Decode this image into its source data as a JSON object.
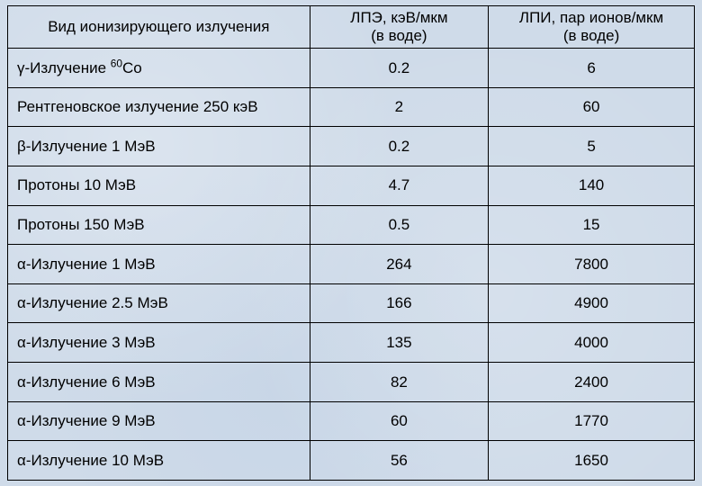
{
  "table": {
    "background_color": "#cfdbe9",
    "border_color": "#000000",
    "text_color": "#000000",
    "font_family": "Arial",
    "header_fontsize": 17,
    "body_fontsize": 17,
    "column_widths_pct": [
      44,
      26,
      30
    ],
    "columns": [
      "Вид ионизирующего излучения",
      "ЛПЭ, кэВ/мкм\n(в воде)",
      "ЛПИ, пар ионов/мкм\n(в воде)"
    ],
    "columns_h": [
      "Вид ионизирующего излучения",
      "ЛПЭ, кэВ/мкм<br>(в воде)",
      "ЛПИ, пар ионов/мкм<br>(в воде)"
    ],
    "rows": [
      {
        "label": "γ-Излучение 60Co",
        "label_h": "γ-Излучение <sup>60</sup>Co",
        "lpe": "0.2",
        "lpi": "6"
      },
      {
        "label": "Рентгеновское излучение 250 кэВ",
        "label_h": "Рентгеновское излучение 250 кэВ",
        "lpe": "2",
        "lpi": "60"
      },
      {
        "label": "β-Излучение 1 МэВ",
        "label_h": "β-Излучение 1 МэВ",
        "lpe": "0.2",
        "lpi": "5"
      },
      {
        "label": "Протоны 10 МэВ",
        "label_h": "Протоны 10 МэВ",
        "lpe": "4.7",
        "lpi": "140"
      },
      {
        "label": "Протоны 150 МэВ",
        "label_h": "Протоны 150 МэВ",
        "lpe": "0.5",
        "lpi": "15"
      },
      {
        "label": "α-Излучение 1 МэВ",
        "label_h": "α-Излучение 1 МэВ",
        "lpe": "264",
        "lpi": "7800"
      },
      {
        "label": "α-Излучение 2.5 МэВ",
        "label_h": "α-Излучение 2.5 МэВ",
        "lpe": "166",
        "lpi": "4900"
      },
      {
        "label": "α-Излучение 3 МэВ",
        "label_h": "α-Излучение 3 МэВ",
        "lpe": "135",
        "lpi": "4000"
      },
      {
        "label": "α-Излучение 6 МэВ",
        "label_h": "α-Излучение 6 МэВ",
        "lpe": "82",
        "lpi": "2400"
      },
      {
        "label": "α-Излучение 9 МэВ",
        "label_h": "α-Излучение 9 МэВ",
        "lpe": "60",
        "lpi": "1770"
      },
      {
        "label": "α-Излучение 10 МэВ",
        "label_h": "α-Излучение 10 МэВ",
        "lpe": "56",
        "lpi": "1650"
      }
    ]
  }
}
